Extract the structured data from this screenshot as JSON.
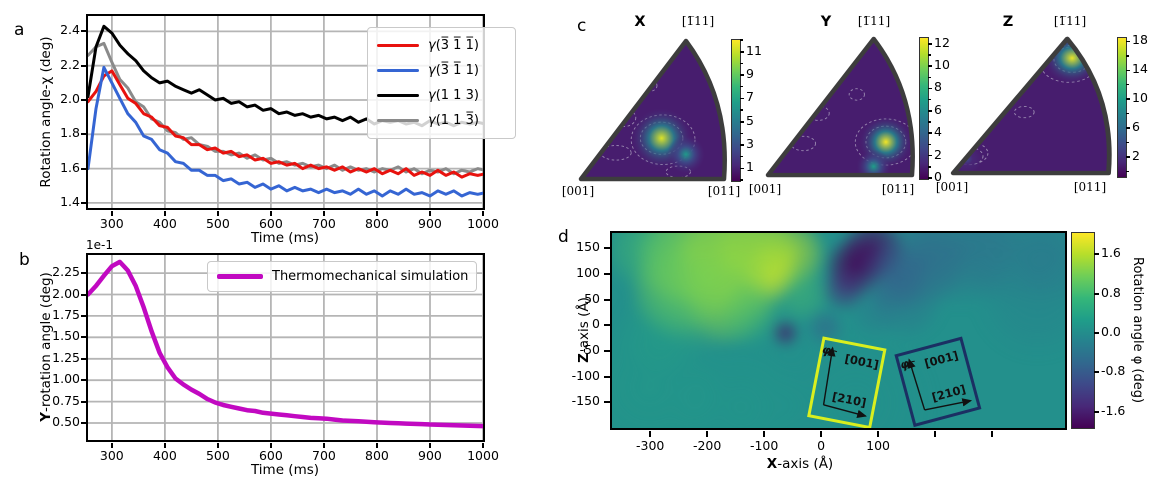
{
  "figure": {
    "panels": [
      "a",
      "b",
      "c",
      "d"
    ],
    "background": "#ffffff"
  },
  "colors": {
    "viridis": [
      "#440154",
      "#482878",
      "#3e4989",
      "#31688e",
      "#26828e",
      "#1f9e89",
      "#35b779",
      "#6ece58",
      "#b5de2b",
      "#fde725"
    ],
    "grid": "#b5b5b5",
    "spine": "#000000",
    "triangle_border": "#3d3d3d"
  },
  "chart_data": [
    {
      "id": "a",
      "type": "line",
      "grid": true,
      "legend_position": "upper right",
      "xlabel": "Time (ms)",
      "ylabel": "Rotation angle-χ (deg)",
      "xlim": [
        255,
        1000
      ],
      "ylim": [
        1.37,
        2.49
      ],
      "xticks": [
        {
          "v": 300,
          "label": "300"
        },
        {
          "v": 400,
          "label": "400"
        },
        {
          "v": 500,
          "label": "500"
        },
        {
          "v": 600,
          "label": "600"
        },
        {
          "v": 700,
          "label": "700"
        },
        {
          "v": 800,
          "label": "800"
        },
        {
          "v": 900,
          "label": "900"
        },
        {
          "v": 1000,
          "label": "1000"
        }
      ],
      "yticks": [
        {
          "v": 1.4,
          "label": "1.4"
        },
        {
          "v": 1.6,
          "label": "1.6"
        },
        {
          "v": 1.8,
          "label": "1.8"
        },
        {
          "v": 2.0,
          "label": "2.0"
        },
        {
          "v": 2.2,
          "label": "2.2"
        },
        {
          "v": 2.4,
          "label": "2.4"
        }
      ],
      "x_start": 255,
      "x_step": 15,
      "draw_order": [
        3,
        0,
        1,
        2
      ],
      "series": [
        {
          "prefix": "γ",
          "label": "(3̅ 1̅ 1̅)",
          "color": "#e8120e",
          "lw": 3,
          "values": [
            1.99,
            2.05,
            2.14,
            2.17,
            2.09,
            2.01,
            1.98,
            1.92,
            1.9,
            1.85,
            1.84,
            1.79,
            1.78,
            1.74,
            1.74,
            1.71,
            1.72,
            1.69,
            1.7,
            1.67,
            1.68,
            1.65,
            1.66,
            1.63,
            1.64,
            1.62,
            1.63,
            1.6,
            1.62,
            1.6,
            1.61,
            1.59,
            1.61,
            1.58,
            1.6,
            1.58,
            1.6,
            1.57,
            1.59,
            1.57,
            1.6,
            1.56,
            1.58,
            1.56,
            1.59,
            1.56,
            1.58,
            1.55,
            1.57,
            1.56,
            1.57
          ]
        },
        {
          "prefix": "γ",
          "label": "(3̅ 1̅ 1)",
          "color": "#3565d3",
          "lw": 3,
          "values": [
            1.6,
            1.95,
            2.19,
            2.1,
            2.01,
            1.92,
            1.87,
            1.79,
            1.77,
            1.71,
            1.69,
            1.64,
            1.63,
            1.59,
            1.59,
            1.56,
            1.56,
            1.53,
            1.54,
            1.51,
            1.52,
            1.49,
            1.51,
            1.48,
            1.5,
            1.47,
            1.49,
            1.47,
            1.48,
            1.46,
            1.48,
            1.46,
            1.47,
            1.45,
            1.48,
            1.45,
            1.47,
            1.44,
            1.47,
            1.45,
            1.48,
            1.45,
            1.46,
            1.44,
            1.47,
            1.45,
            1.47,
            1.44,
            1.46,
            1.45,
            1.46
          ]
        },
        {
          "prefix": "γ",
          "label": "(1 1 3)",
          "color": "#000000",
          "lw": 3,
          "values": [
            2.02,
            2.31,
            2.43,
            2.39,
            2.32,
            2.27,
            2.23,
            2.17,
            2.13,
            2.1,
            2.11,
            2.08,
            2.06,
            2.04,
            2.06,
            2.03,
            2.0,
            2.01,
            1.98,
            1.99,
            1.96,
            1.97,
            1.94,
            1.95,
            1.92,
            1.93,
            1.91,
            1.92,
            1.9,
            1.91,
            1.89,
            1.9,
            1.88,
            1.9,
            1.87,
            1.89,
            1.86,
            1.88,
            1.87,
            1.88,
            1.86,
            1.87,
            1.85,
            1.88,
            1.86,
            1.87,
            1.85,
            1.87,
            1.86,
            1.87,
            1.86
          ]
        },
        {
          "prefix": "γ",
          "label": "(1 1 3̅)",
          "color": "#8a8a8a",
          "lw": 3,
          "values": [
            2.26,
            2.31,
            2.33,
            2.22,
            2.12,
            2.07,
            1.99,
            1.96,
            1.89,
            1.87,
            1.82,
            1.81,
            1.77,
            1.78,
            1.74,
            1.73,
            1.7,
            1.7,
            1.68,
            1.69,
            1.66,
            1.68,
            1.65,
            1.66,
            1.63,
            1.64,
            1.62,
            1.63,
            1.61,
            1.62,
            1.6,
            1.62,
            1.59,
            1.61,
            1.59,
            1.6,
            1.58,
            1.6,
            1.59,
            1.61,
            1.58,
            1.6,
            1.57,
            1.59,
            1.58,
            1.6,
            1.57,
            1.59,
            1.58,
            1.6,
            1.59
          ]
        }
      ]
    },
    {
      "id": "b",
      "type": "line",
      "grid": true,
      "offset_text": "1e-1",
      "xlabel": "Time (ms)",
      "ylabel_bold": "Y",
      "ylabel_rest": "-rotation angle (deg)",
      "xlim": [
        255,
        1000
      ],
      "ylim": [
        0.302,
        2.461
      ],
      "xticks": [
        {
          "v": 300,
          "label": "300"
        },
        {
          "v": 400,
          "label": "400"
        },
        {
          "v": 500,
          "label": "500"
        },
        {
          "v": 600,
          "label": "600"
        },
        {
          "v": 700,
          "label": "700"
        },
        {
          "v": 800,
          "label": "800"
        },
        {
          "v": 900,
          "label": "900"
        },
        {
          "v": 1000,
          "label": "1000"
        }
      ],
      "yticks": [
        {
          "v": 0.5,
          "label": "0.50"
        },
        {
          "v": 0.75,
          "label": "0.75"
        },
        {
          "v": 1.0,
          "label": "1.00"
        },
        {
          "v": 1.25,
          "label": "1.25"
        },
        {
          "v": 1.5,
          "label": "1.50"
        },
        {
          "v": 1.75,
          "label": "1.75"
        },
        {
          "v": 2.0,
          "label": "2.00"
        },
        {
          "v": 2.25,
          "label": "2.25"
        }
      ],
      "x_start": 255,
      "x_step": 15,
      "draw_order": [
        0
      ],
      "series": [
        {
          "prefix": "",
          "label": "Thermomechanical simulation",
          "color": "#c109c1",
          "lw": 4.5,
          "values": [
            2.0,
            2.1,
            2.22,
            2.33,
            2.38,
            2.28,
            2.1,
            1.85,
            1.57,
            1.32,
            1.15,
            1.02,
            0.95,
            0.89,
            0.84,
            0.78,
            0.74,
            0.71,
            0.69,
            0.67,
            0.65,
            0.64,
            0.62,
            0.61,
            0.6,
            0.59,
            0.58,
            0.57,
            0.56,
            0.555,
            0.55,
            0.54,
            0.53,
            0.525,
            0.52,
            0.515,
            0.51,
            0.505,
            0.5,
            0.497,
            0.493,
            0.49,
            0.487,
            0.483,
            0.48,
            0.477,
            0.474,
            0.471,
            0.468,
            0.465,
            0.463
          ]
        }
      ]
    },
    {
      "id": "c",
      "type": "heatmap",
      "subtype": "inverse_pole_figure_contours",
      "colormap": "viridis",
      "plots": [
        {
          "title": "X",
          "corner_bl": "[001]",
          "corner_br": "[011]",
          "corner_top": "[1̅11]",
          "colorbar": {
            "vmin": 0,
            "vmax": 12.1,
            "minor_step": 1,
            "ticks": [
              {
                "v": 1,
                "label": "1"
              },
              {
                "v": 3,
                "label": "3"
              },
              {
                "v": 5,
                "label": "5"
              },
              {
                "v": 7,
                "label": "7"
              },
              {
                "v": 9,
                "label": "9"
              },
              {
                "v": 11,
                "label": "11"
              }
            ]
          },
          "hotspots": [
            {
              "fx": 0.55,
              "fy": 0.7,
              "value": 11.5,
              "r": 30
            },
            {
              "fx": 0.71,
              "fy": 0.81,
              "value": 6.5,
              "r": 19
            }
          ],
          "rings": [
            [
              0.55,
              0.7,
              0.14,
              0.11
            ],
            [
              0.56,
              0.71,
              0.21,
              0.17
            ],
            [
              0.47,
              0.34,
              0.05,
              0.04
            ],
            [
              0.3,
              0.56,
              0.08,
              0.06
            ],
            [
              0.25,
              0.8,
              0.1,
              0.05
            ],
            [
              0.66,
              0.93,
              0.08,
              0.04
            ]
          ]
        },
        {
          "title": "Y",
          "corner_bl": "[001]",
          "corner_br": "[011]",
          "corner_top": "[1̅11]",
          "colorbar": {
            "vmin": 0,
            "vmax": 12.6,
            "minor_step": 1,
            "ticks": [
              {
                "v": 0,
                "label": "0"
              },
              {
                "v": 2,
                "label": "2"
              },
              {
                "v": 4,
                "label": "4"
              },
              {
                "v": 6,
                "label": "6"
              },
              {
                "v": 8,
                "label": "8"
              },
              {
                "v": 10,
                "label": "10"
              },
              {
                "v": 12,
                "label": "12"
              }
            ]
          },
          "hotspots": [
            {
              "fx": 0.79,
              "fy": 0.75,
              "value": 12.4,
              "r": 26
            },
            {
              "fx": 0.71,
              "fy": 0.92,
              "value": 7,
              "r": 17
            }
          ],
          "rings": [
            [
              0.79,
              0.75,
              0.13,
              0.11
            ],
            [
              0.79,
              0.75,
              0.2,
              0.16
            ],
            [
              0.35,
              0.55,
              0.07,
              0.05
            ],
            [
              0.45,
              0.3,
              0.06,
              0.05
            ],
            [
              0.25,
              0.76,
              0.08,
              0.05
            ],
            [
              0.6,
              0.42,
              0.05,
              0.04
            ]
          ]
        },
        {
          "title": "Z",
          "corner_bl": "[001]",
          "corner_br": "[011]",
          "corner_top": "[1̅11]",
          "colorbar": {
            "vmin": -0.6,
            "vmax": 18.6,
            "minor_step": 2,
            "ticks": [
              {
                "v": 2,
                "label": "2"
              },
              {
                "v": 6,
                "label": "6"
              },
              {
                "v": 10,
                "label": "10"
              },
              {
                "v": 14,
                "label": "14"
              },
              {
                "v": 18,
                "label": "18"
              }
            ]
          },
          "hotspots": [
            {
              "fx": 0.74,
              "fy": 0.17,
              "value": 18,
              "r": 26
            },
            {
              "fx": 0.1,
              "fy": 0.88,
              "value": 4,
              "r": 14
            }
          ],
          "rings": [
            [
              0.74,
              0.18,
              0.11,
              0.09
            ],
            [
              0.72,
              0.21,
              0.17,
              0.13
            ],
            [
              0.12,
              0.86,
              0.08,
              0.06
            ],
            [
              0.11,
              0.84,
              0.12,
              0.08
            ],
            [
              0.45,
              0.55,
              0.06,
              0.04
            ]
          ]
        }
      ]
    },
    {
      "id": "d",
      "type": "heatmap",
      "xlabel_bold": "X",
      "xlabel_rest": "-axis (Å)",
      "ylabel_bold": "Z",
      "ylabel_rest": "-axis (Å)",
      "xlim": [
        -367,
        428
      ],
      "ylim": [
        -200,
        180
      ],
      "xticks": [
        {
          "v": -300,
          "label": "-300"
        },
        {
          "v": -200,
          "label": "-200"
        },
        {
          "v": -100,
          "label": "-100"
        },
        {
          "v": 0,
          "label": "0"
        },
        {
          "v": 100,
          "label": "100"
        },
        {
          "v": 200,
          "label": ""
        },
        {
          "v": 300,
          "label": ""
        }
      ],
      "yticks": [
        {
          "v": 150,
          "label": "150"
        },
        {
          "v": 100,
          "label": "100"
        },
        {
          "v": 50,
          "label": "50"
        },
        {
          "v": 0,
          "label": "0"
        },
        {
          "v": -50,
          "label": "-50"
        },
        {
          "v": -100,
          "label": "-100"
        },
        {
          "v": -150,
          "label": "-150"
        }
      ],
      "colorbar": {
        "label": "Rotation angle φ (deg)",
        "vmin": -1.93,
        "vmax": 2.03,
        "ticks": [
          {
            "v": 1.6,
            "label": "1.6"
          },
          {
            "v": 0.8,
            "label": "0.8"
          },
          {
            "v": 0.0,
            "label": "0.0"
          },
          {
            "v": -0.8,
            "label": "-0.8"
          },
          {
            "v": -1.6,
            "label": "-1.6"
          }
        ]
      },
      "field_background_value": 0.05,
      "blobs": [
        {
          "x": -230,
          "z": 140,
          "r": 48,
          "v": 1.3,
          "a": 0.75
        },
        {
          "x": -150,
          "z": 125,
          "r": 55,
          "v": 1.5,
          "a": 0.8
        },
        {
          "x": -90,
          "z": 103,
          "r": 26,
          "v": 1.8,
          "a": 0.95
        },
        {
          "x": -255,
          "z": 65,
          "r": 42,
          "v": 1.1,
          "a": 0.65
        },
        {
          "x": -160,
          "z": 60,
          "r": 45,
          "v": 1.3,
          "a": 0.7
        },
        {
          "x": -55,
          "z": 140,
          "r": 32,
          "v": 1.55,
          "a": 0.8
        },
        {
          "x": -305,
          "z": 150,
          "r": 38,
          "v": 0.9,
          "a": 0.55
        },
        {
          "x": -200,
          "z": 95,
          "r": 65,
          "v": 1.2,
          "a": 0.55
        },
        {
          "x": -115,
          "z": 160,
          "r": 36,
          "v": 1.4,
          "a": 0.7
        },
        {
          "x": -35,
          "z": 62,
          "r": 26,
          "v": 0.9,
          "a": 0.5
        },
        {
          "x": -120,
          "z": 20,
          "r": 30,
          "v": 0.6,
          "a": 0.4
        },
        {
          "x": -280,
          "z": -10,
          "r": 40,
          "v": 0.45,
          "a": 0.3
        },
        {
          "x": 60,
          "z": 115,
          "r": 26,
          "v": -1.9,
          "a": 0.95
        },
        {
          "x": 92,
          "z": 150,
          "r": 28,
          "v": -1.85,
          "a": 0.85
        },
        {
          "x": 42,
          "z": 72,
          "r": 20,
          "v": -1.5,
          "a": 0.7
        },
        {
          "x": 125,
          "z": 95,
          "r": 32,
          "v": -0.95,
          "a": 0.6
        },
        {
          "x": 175,
          "z": 125,
          "r": 42,
          "v": -0.8,
          "a": 0.55
        },
        {
          "x": 245,
          "z": 150,
          "r": 52,
          "v": -0.7,
          "a": 0.45
        },
        {
          "x": 330,
          "z": 162,
          "r": 55,
          "v": -0.6,
          "a": 0.4
        },
        {
          "x": 150,
          "z": 45,
          "r": 32,
          "v": -0.6,
          "a": 0.45
        },
        {
          "x": -62,
          "z": -15,
          "r": 11,
          "v": -1.7,
          "a": 0.85
        },
        {
          "x": 8,
          "z": -4,
          "r": 16,
          "v": -0.9,
          "a": 0.5
        },
        {
          "x": 95,
          "z": 25,
          "r": 22,
          "v": -0.5,
          "a": 0.4
        },
        {
          "x": -300,
          "z": -120,
          "r": 65,
          "v": 0.35,
          "a": 0.3
        },
        {
          "x": -140,
          "z": -160,
          "r": 60,
          "v": 0.3,
          "a": 0.25
        },
        {
          "x": 60,
          "z": -150,
          "r": 70,
          "v": 0.15,
          "a": 0.2
        },
        {
          "x": 380,
          "z": 60,
          "r": 55,
          "v": -0.35,
          "a": 0.35
        },
        {
          "x": 420,
          "z": 140,
          "r": 45,
          "v": -0.5,
          "a": 0.4
        }
      ],
      "insets": [
        {
          "name": "grain-orientation-box-1",
          "color": "#d9ef1f",
          "cx": 45,
          "cz": -112,
          "w": 62,
          "h": 79,
          "rot": 11,
          "label_up": "[001]",
          "label_right": "[210]",
          "angle_label": "φ"
        },
        {
          "name": "grain-orientation-box-2",
          "color": "#1b2f63",
          "cx": 205,
          "cz": -110,
          "w": 67,
          "h": 72,
          "rot": -15,
          "label_up": "[001]",
          "label_right": "[210]",
          "angle_label": "φ"
        }
      ]
    }
  ]
}
